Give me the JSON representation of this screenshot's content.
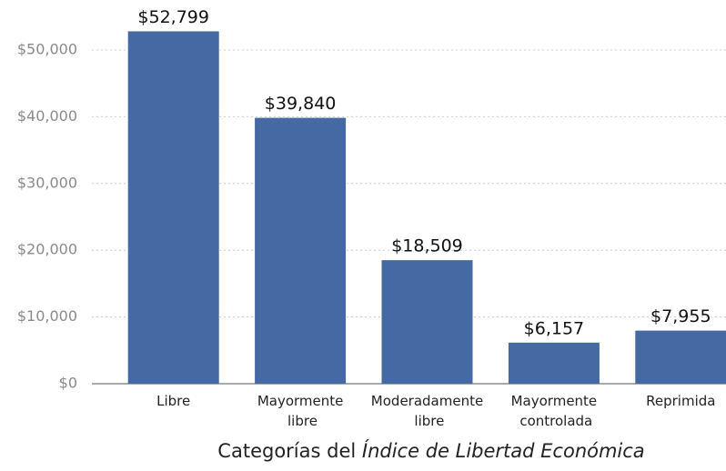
{
  "chart_data": {
    "type": "bar",
    "xlabel": [
      "Categorías del",
      "Índice de Libertad Económica"
    ],
    "categories": [
      "Libre",
      "Mayormente libre",
      "Moderadamente libre",
      "Mayormente controlada",
      "Reprimida"
    ],
    "values": [
      52799,
      39840,
      18509,
      6157,
      7955
    ],
    "value_labels": [
      "$52,799",
      "$39,840",
      "$18,509",
      "$6,157",
      "$7,955"
    ],
    "color": "#4569a3",
    "ylim": [
      0,
      50000
    ],
    "yticks": [
      {
        "value": 0,
        "label": "$0"
      },
      {
        "value": 10000,
        "label": "$10,000"
      },
      {
        "value": 20000,
        "label": "$20,000"
      },
      {
        "value": 30000,
        "label": "$30,000"
      },
      {
        "value": 40000,
        "label": "$40,000"
      },
      {
        "value": 50000,
        "label": "$50,000"
      }
    ],
    "grid": true
  }
}
